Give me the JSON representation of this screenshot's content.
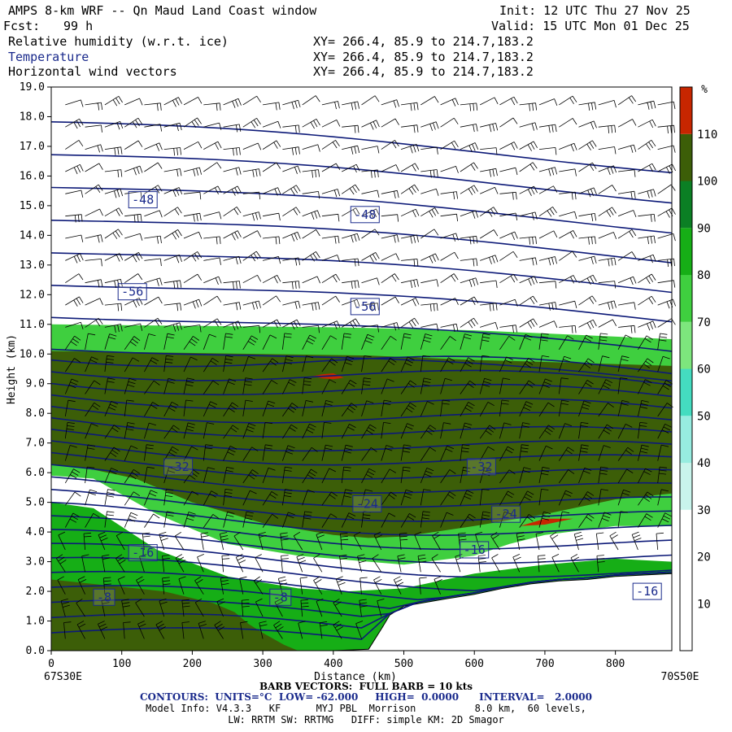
{
  "header": {
    "title": "AMPS 8-km WRF -- Qn Maud Land Coast window",
    "fcst_label": "Fcst:",
    "fcst_value": "99 h",
    "init": "Init: 12 UTC Thu 27 Nov 25",
    "valid": "Valid: 15 UTC Mon 01 Dec 25",
    "fields": [
      {
        "name": "Relative humidity (w.r.t. ice)",
        "xy": "XY= 266.4, 85.9 to 214.7,183.2"
      },
      {
        "name": "Temperature",
        "xy": "XY= 266.4, 85.9 to 214.7,183.2"
      },
      {
        "name": "Horizontal wind vectors",
        "xy": "XY= 266.4, 85.9 to 214.7,183.2"
      }
    ]
  },
  "chart_data": {
    "type": "heatmap",
    "title": "Relative humidity (w.r.t. ice), Temperature, Horizontal wind vectors cross-section",
    "xlabel": "Distance (km)",
    "ylabel": "Height (km)",
    "xlim": [
      0,
      880
    ],
    "ylim": [
      0,
      19
    ],
    "x_ticks": [
      "0",
      "100",
      "200",
      "300",
      "400",
      "500",
      "600",
      "700",
      "800"
    ],
    "y_ticks": [
      "0.0",
      "1.0",
      "2.0",
      "3.0",
      "4.0",
      "5.0",
      "6.0",
      "7.0",
      "8.0",
      "9.0",
      "10.0",
      "11.0",
      "12.0",
      "13.0",
      "14.0",
      "15.0",
      "16.0",
      "17.0",
      "18.0",
      "19.0"
    ],
    "x_start_label": "67S30E",
    "x_end_label": "70S50E",
    "colorbar": {
      "unit": "%",
      "labels": [
        "10",
        "20",
        "30",
        "40",
        "50",
        "60",
        "70",
        "80",
        "90",
        "100",
        "110"
      ],
      "levels": [
        0,
        10,
        20,
        30,
        40,
        50,
        60,
        70,
        80,
        90,
        100,
        110,
        120
      ],
      "colors": [
        "#ffffff",
        "#ffffff",
        "#ffffff",
        "#c9f4ec",
        "#97ece0",
        "#44dcc0",
        "#7de67d",
        "#3fcf3f",
        "#16ae16",
        "#0b7f24",
        "#3c5e08",
        "#c72600"
      ]
    },
    "humidity_layers": [
      {
        "level": 70,
        "bottom": [
          0,
          5.9,
          60,
          5.8,
          150,
          4.6,
          250,
          3.6,
          350,
          3.2,
          450,
          3.0,
          500,
          2.9,
          600,
          3.2,
          650,
          3.6,
          700,
          3.9,
          800,
          4.2,
          880,
          4.2
        ],
        "top": [
          0,
          11.0,
          200,
          10.95,
          400,
          10.9,
          600,
          10.8,
          880,
          10.5
        ]
      },
      {
        "level": 100,
        "bottom": [
          0,
          6.3,
          60,
          6.1,
          120,
          5.8,
          200,
          5.0,
          300,
          4.3,
          400,
          3.9,
          450,
          3.8,
          500,
          3.85,
          600,
          4.2,
          700,
          4.6,
          800,
          5.1,
          880,
          5.3
        ],
        "top": [
          0,
          10.1,
          150,
          10.05,
          300,
          10.0,
          450,
          9.95,
          600,
          9.8,
          750,
          9.7,
          880,
          9.6
        ]
      },
      {
        "level": 80,
        "bottom": [
          0,
          0.0,
          880,
          0.0
        ],
        "top": [
          0,
          5.0,
          60,
          4.8,
          150,
          3.4,
          250,
          2.5,
          300,
          2.3,
          350,
          2.1,
          420,
          2.0,
          500,
          2.1,
          550,
          2.35,
          600,
          2.6,
          700,
          2.9,
          800,
          3.1,
          880,
          3.0
        ]
      },
      {
        "level": 100,
        "bottom": [
          0,
          0.0,
          40,
          0.0,
          120,
          0.0,
          200,
          0.0,
          300,
          0.0,
          350,
          0.0
        ],
        "top": [
          0,
          2.4,
          80,
          2.2,
          160,
          2.0,
          230,
          1.6,
          260,
          1.3,
          280,
          0.9,
          300,
          0.6,
          330,
          0.2,
          350,
          0.0
        ]
      },
      {
        "level": 110,
        "bottom": [
          370,
          9.25,
          385,
          9.18,
          400,
          9.15,
          415,
          9.2
        ],
        "top": [
          370,
          9.25,
          385,
          9.32,
          400,
          9.35,
          415,
          9.2
        ]
      },
      {
        "level": 110,
        "bottom": [
          665,
          4.2,
          700,
          4.25,
          740,
          4.45
        ],
        "top": [
          665,
          4.2,
          700,
          4.45,
          740,
          4.45
        ]
      }
    ],
    "terrain": [
      0,
      0,
      400,
      0,
      450,
      0.05,
      470,
      0.8,
      480,
      1.2,
      500,
      1.5,
      560,
      1.75,
      600,
      1.9,
      640,
      2.1,
      680,
      2.25,
      720,
      2.35,
      760,
      2.4,
      800,
      2.5,
      880,
      2.6
    ],
    "temperature_contour_labels": [
      {
        "text": "-48",
        "x": 130,
        "y": 15.2
      },
      {
        "text": "-48",
        "x": 445,
        "y": 14.7
      },
      {
        "text": "-56",
        "x": 115,
        "y": 12.1
      },
      {
        "text": "-56",
        "x": 445,
        "y": 11.6
      },
      {
        "text": "-32",
        "x": 180,
        "y": 6.2
      },
      {
        "text": "-32",
        "x": 610,
        "y": 6.2
      },
      {
        "text": "-24",
        "x": 448,
        "y": 4.95
      },
      {
        "text": "-24",
        "x": 645,
        "y": 4.6
      },
      {
        "text": "-16",
        "x": 130,
        "y": 3.3
      },
      {
        "text": "-16",
        "x": 600,
        "y": 3.4
      },
      {
        "text": "-8",
        "x": 75,
        "y": 1.8
      },
      {
        "text": "-8",
        "x": 325,
        "y": 1.8
      },
      {
        "text": "-16",
        "x": 845,
        "y": 2.0
      }
    ]
  },
  "footer": {
    "barb": "BARB VECTORS:  FULL BARB = 10 kts",
    "contours": "CONTOURS:  UNITS=°C  LOW= -62.000     HIGH=  0.0000      INTERVAL=   2.0000",
    "model": "Model Info: V4.3.3   KF      MYJ PBL  Morrison          8.0 km,  60 levels,",
    "physics": "LW: RRTM SW: RRTMG   DIFF: simple KM: 2D Smagor"
  },
  "colors": {
    "contour": "#0d1a78",
    "label_box": "#1a2a8c"
  }
}
